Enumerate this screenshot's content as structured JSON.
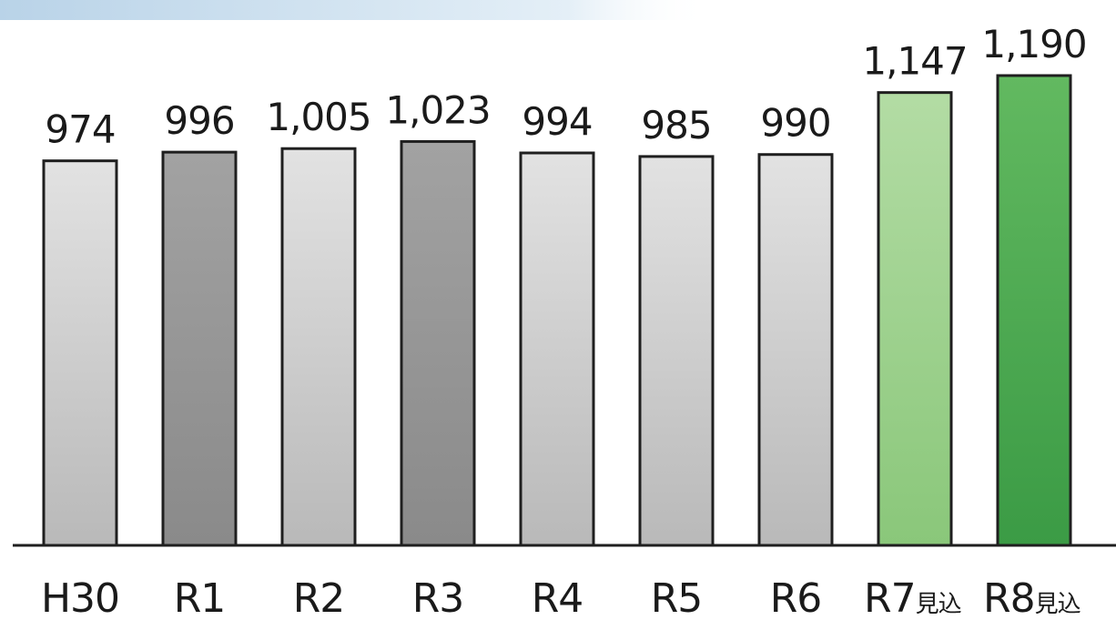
{
  "chart_data": {
    "type": "bar",
    "categories": [
      "H30",
      "R1",
      "R2",
      "R3",
      "R4",
      "R5",
      "R6",
      "R7",
      "R8"
    ],
    "category_suffixes": [
      "",
      "",
      "",
      "",
      "",
      "",
      "",
      "見込",
      "見込"
    ],
    "values": [
      974,
      996,
      1005,
      1023,
      994,
      985,
      990,
      1147,
      1190
    ],
    "value_labels": [
      "974",
      "996",
      "1,005",
      "1,023",
      "994",
      "985",
      "990",
      "1,147",
      "1,190"
    ],
    "title": "",
    "xlabel": "",
    "ylabel": "",
    "ylim": [
      0,
      1190
    ],
    "grid": false,
    "legend": "none",
    "colors": {
      "actual_light": "#c8c8c8",
      "actual_dark": "#9c9c9c",
      "forecast_light": "#9fd08e",
      "forecast_dark": "#4aa84f",
      "outline": "#1f1f1f",
      "axis": "#1f1f1f",
      "band": "#cfe2f0"
    },
    "bar_shades": [
      "light",
      "dark",
      "light",
      "dark",
      "light",
      "light",
      "light",
      "forecast_light",
      "forecast_dark"
    ]
  }
}
